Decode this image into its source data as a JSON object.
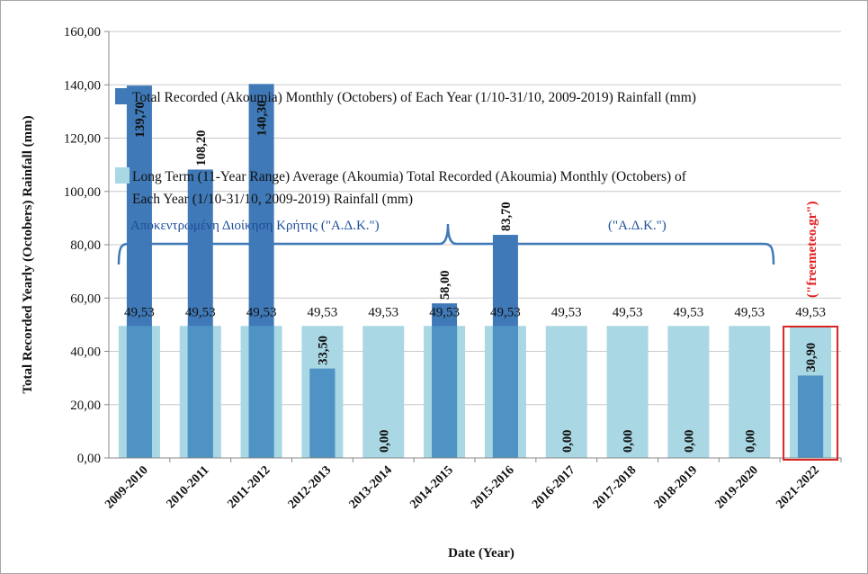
{
  "chart_data": {
    "type": "bar",
    "categories": [
      "2009-2010",
      "2010-2011",
      "2011-2012",
      "2012-2013",
      "2013-2014",
      "2014-2015",
      "2015-2016",
      "2016-2017",
      "2017-2018",
      "2018-2019",
      "2019-2020",
      "2021-2022"
    ],
    "series": [
      {
        "name": "Long Term (11-Year Range) Average (Akoumia) Total Recorded (Akoumia) Monthly (Octobers) of Each Year (1/10-31/10, 2009-2019) Rainfall (mm)",
        "values": [
          49.53,
          49.53,
          49.53,
          49.53,
          49.53,
          49.53,
          49.53,
          49.53,
          49.53,
          49.53,
          49.53,
          49.53
        ],
        "labels": [
          "49,53",
          "49,53",
          "49,53",
          "49,53",
          "49,53",
          "49,53",
          "49,53",
          "49,53",
          "49,53",
          "49,53",
          "49,53",
          "49,53"
        ],
        "color": "#a9d7e3"
      },
      {
        "name": "Total Recorded (Akoumia) Monthly (Octobers) of Each Year (1/10-31/10, 2009-2019) Rainfall (mm)",
        "values": [
          139.7,
          108.2,
          140.3,
          33.5,
          0,
          58.0,
          83.7,
          0,
          0,
          0,
          0,
          30.9
        ],
        "labels": [
          "139,70",
          "108,20",
          "140,30",
          "33,50",
          "0,00",
          "58,00",
          "83,70",
          "0,00",
          "0,00",
          "0,00",
          "0,00",
          "30,90"
        ],
        "color": "#3f79b7"
      }
    ],
    "xlabel": "Date (Year)",
    "ylabel": "Total Recorded Yearly (Octobers) Rainfall (mm)",
    "ylim": [
      0,
      160
    ],
    "yticks": [
      "0,00",
      "20,00",
      "40,00",
      "60,00",
      "80,00",
      "100,00",
      "120,00",
      "140,00",
      "160,00"
    ],
    "grid": true,
    "legend": "top-left inside plot",
    "annotations": {
      "region_left": "Αποκεντρωμένη Διοίκηση Κρήτης (\"Α.Δ.Κ.\")",
      "region_right": "(\"Α.Δ.Κ.\")",
      "source": "(\"freemeteo.gr\")",
      "highlight_category": "2021-2022"
    },
    "colors": {
      "label_blue": "#1f4e9a",
      "source_red": "#e02020",
      "highlight_border": "#d62424",
      "grid": "#c8c8c8"
    }
  }
}
